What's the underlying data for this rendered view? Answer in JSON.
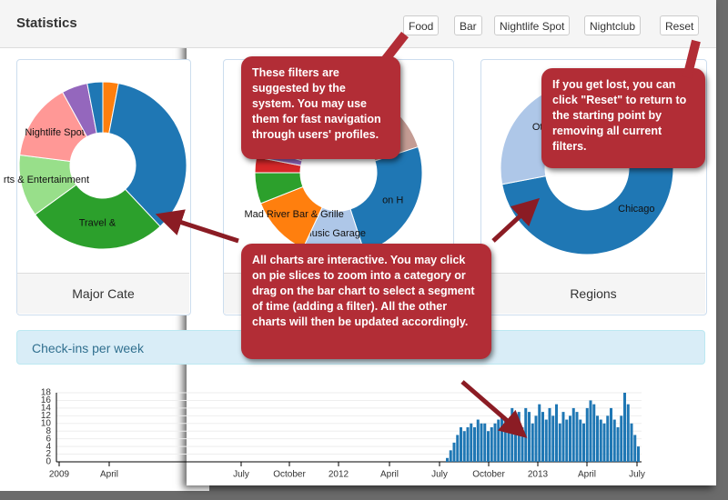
{
  "header": {
    "title": "Statistics",
    "filters": [
      "Food",
      "Bar",
      "Nightlife Spot",
      "Nightclub"
    ],
    "reset": "Reset"
  },
  "panels": [
    "Major Cate",
    "Regions"
  ],
  "callouts": [
    "These filters are suggested by the system. You may use them for fast navigation through users' profiles.",
    "If you get lost, you can click \"Reset\" to return to the starting point by removing all current filters.",
    "All charts are interactive. You may click on pie slices to zoom into a category or drag on the bar chart to select a segment of time (adding a filter). All the other charts will then be updated accordingly."
  ],
  "chart_data": [
    {
      "type": "pie",
      "labels": [
        null,
        null,
        "Travel &",
        "rts & Entertainment",
        "Nightlife Spot",
        null,
        null
      ],
      "values": [
        3,
        35,
        27,
        12,
        15,
        5,
        3
      ],
      "colors": [
        "#ff7f0e",
        "#1f77b4",
        "#2ca02c",
        "#98df8a",
        "#ff9896",
        "#9467bd",
        "#1f77b4"
      ]
    },
    {
      "type": "pie",
      "labels": [
        null,
        "on H",
        "Music Garage",
        "Mad River Bar & Grille",
        null,
        null,
        null,
        null,
        null,
        null
      ],
      "values": [
        20,
        25,
        12,
        12,
        6,
        3,
        2,
        2,
        10,
        8
      ],
      "colors": [
        "#c49c94",
        "#1f77b4",
        "#aec7e8",
        "#ff7f0e",
        "#2ca02c",
        "#d62728",
        "#9467bd",
        "#e377c2",
        "#8c564b",
        "#c7c7c7"
      ]
    },
    {
      "type": "pie",
      "labels": [
        "Chicago",
        "Ot"
      ],
      "values": [
        72,
        28
      ],
      "colors": [
        "#1f77b4",
        "#aec7e8"
      ]
    },
    {
      "type": "bar",
      "title": "Check-ins per week",
      "color": "#1f77b4",
      "values": [
        1,
        3,
        5,
        7,
        9,
        8,
        9,
        10,
        9,
        11,
        10,
        10,
        8,
        9,
        10,
        11,
        12,
        11,
        10,
        14,
        12,
        13,
        9,
        14,
        13,
        10,
        12,
        15,
        13,
        11,
        14,
        12,
        15,
        10,
        13,
        11,
        12,
        14,
        13,
        11,
        10,
        14,
        16,
        15,
        12,
        11,
        10,
        12,
        14,
        11,
        9,
        12,
        18,
        15,
        10,
        7,
        4
      ],
      "ylim": [
        0,
        18
      ],
      "yticks": [
        0,
        2,
        4,
        6,
        8,
        10,
        12,
        14,
        16,
        18
      ],
      "x_labels": [
        "2009",
        "April",
        "July",
        "October",
        "2012",
        "April",
        "July",
        "October",
        "2013",
        "April",
        "July"
      ],
      "grid": true
    }
  ]
}
